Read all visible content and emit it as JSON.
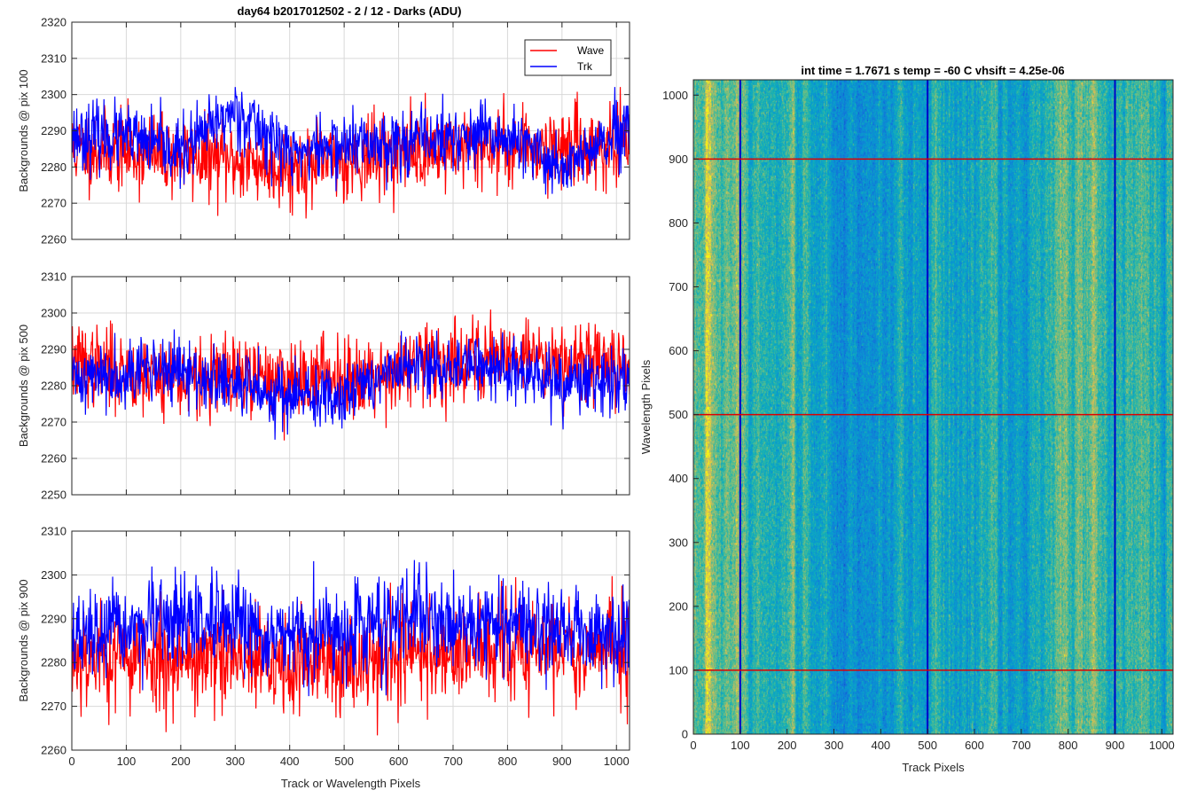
{
  "figure_title": "day64 b2017012502 - 2 / 12 - Darks (ADU)",
  "colors": {
    "wave": "#ff0000",
    "trk": "#0000ff",
    "grid": "#d9d9d9",
    "axis": "#262626"
  },
  "chart_data": [
    {
      "type": "line",
      "ylabel": "Backgrounds @ pix 100",
      "xlim": [
        0,
        1024
      ],
      "ylim": [
        2260,
        2320
      ],
      "xticks": [
        0,
        100,
        200,
        300,
        400,
        500,
        600,
        700,
        800,
        900,
        1000
      ],
      "yticks": [
        2260,
        2270,
        2280,
        2290,
        2300,
        2310,
        2320
      ],
      "show_xticklabels": false,
      "grid": true,
      "legend": {
        "placement": "top-right",
        "entries": [
          "Wave",
          "Trk"
        ]
      },
      "series": [
        {
          "name": "Wave",
          "color": "#ff0000",
          "mean": 2284,
          "noise": 5.5,
          "seed": 11,
          "trend_x": [
            0,
            200,
            400,
            600,
            800,
            1024
          ],
          "trend_y": [
            2285,
            2283,
            2280,
            2284,
            2286,
            2285
          ]
        },
        {
          "name": "Trk",
          "color": "#0000ff",
          "mean": 2287,
          "noise": 4.5,
          "seed": 23,
          "trend_x": [
            0,
            100,
            200,
            300,
            400,
            500,
            600,
            700,
            800,
            900,
            1024
          ],
          "trend_y": [
            2289,
            2288,
            2284,
            2296,
            2284,
            2286,
            2287,
            2288,
            2288,
            2280,
            2290
          ]
        }
      ]
    },
    {
      "type": "line",
      "ylabel": "Backgrounds @ pix 500",
      "xlim": [
        0,
        1024
      ],
      "ylim": [
        2250,
        2310
      ],
      "xticks": [
        0,
        100,
        200,
        300,
        400,
        500,
        600,
        700,
        800,
        900,
        1000
      ],
      "yticks": [
        2250,
        2260,
        2270,
        2280,
        2290,
        2300,
        2310
      ],
      "show_xticklabels": false,
      "grid": true,
      "series": [
        {
          "name": "Wave",
          "color": "#ff0000",
          "mean": 2284,
          "noise": 5.5,
          "seed": 37,
          "trend_x": [
            0,
            200,
            400,
            600,
            800,
            1024
          ],
          "trend_y": [
            2286,
            2282,
            2282,
            2284,
            2289,
            2286
          ]
        },
        {
          "name": "Trk",
          "color": "#0000ff",
          "mean": 2283,
          "noise": 4.5,
          "seed": 41,
          "trend_x": [
            0,
            150,
            300,
            450,
            600,
            750,
            900,
            1024
          ],
          "trend_y": [
            2282,
            2285,
            2280,
            2276,
            2284,
            2286,
            2280,
            2282
          ]
        }
      ]
    },
    {
      "type": "line",
      "xlabel": "Track or Wavelength Pixels",
      "ylabel": "Backgrounds @ pix 900",
      "xlim": [
        0,
        1024
      ],
      "ylim": [
        2260,
        2310
      ],
      "xticks": [
        0,
        100,
        200,
        300,
        400,
        500,
        600,
        700,
        800,
        900,
        1000
      ],
      "yticks": [
        2260,
        2270,
        2280,
        2290,
        2300,
        2310
      ],
      "show_xticklabels": true,
      "grid": true,
      "series": [
        {
          "name": "Wave",
          "color": "#ff0000",
          "mean": 2282,
          "noise": 6,
          "seed": 53,
          "trend_x": [
            0,
            200,
            400,
            600,
            800,
            1024
          ],
          "trend_y": [
            2282,
            2281,
            2279,
            2282,
            2283,
            2283
          ]
        },
        {
          "name": "Trk",
          "color": "#0000ff",
          "mean": 2287,
          "noise": 5,
          "seed": 67,
          "trend_x": [
            0,
            200,
            400,
            600,
            800,
            1024
          ],
          "trend_y": [
            2285,
            2290,
            2285,
            2290,
            2289,
            2286
          ]
        }
      ]
    },
    {
      "type": "heatmap",
      "title": "int time = 1.7671 s    temp = -60 C    vhsift = 4.25e-06",
      "xlabel": "Track Pixels",
      "ylabel": "Wavelength Pixels",
      "xlim": [
        0,
        1024
      ],
      "ylim": [
        0,
        1024
      ],
      "xticks": [
        0,
        100,
        200,
        300,
        400,
        500,
        600,
        700,
        800,
        900,
        1000
      ],
      "yticks": [
        0,
        100,
        200,
        300,
        400,
        500,
        600,
        700,
        800,
        900,
        1000
      ],
      "colormap": "parula",
      "vertical_markers": {
        "color": "#0000c8",
        "x": [
          100,
          500,
          900
        ]
      },
      "horizontal_markers": {
        "color": "#dd0000",
        "y": [
          100,
          500,
          900
        ]
      }
    }
  ]
}
